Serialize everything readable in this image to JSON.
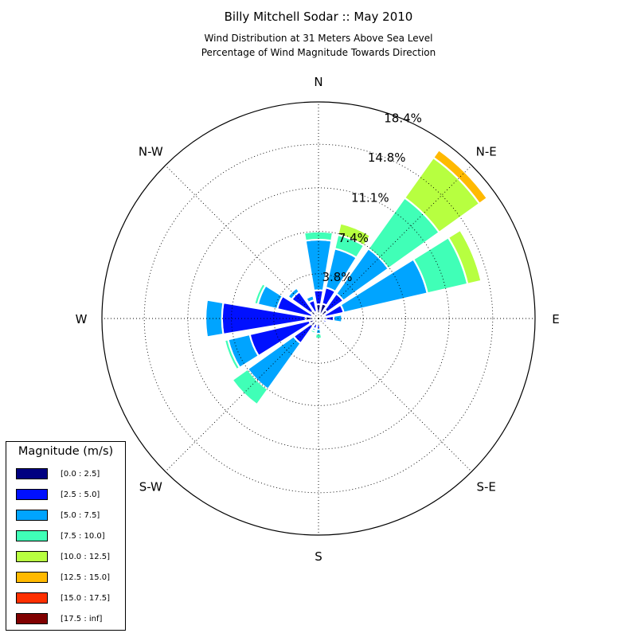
{
  "title": "Billy Mitchell Sodar :: May 2010",
  "subtitle_lines": [
    "Wind Distribution at 31 Meters Above Sea Level",
    "Percentage of Wind Magnitude Towards Direction"
  ],
  "chart_data": {
    "type": "polar-stacked-bar (wind rose)",
    "title": "Billy Mitchell Sodar :: May 2010",
    "radial_unit": "%",
    "radial_ticks": [
      "3.8%",
      "7.4%",
      "11.1%",
      "14.8%",
      "18.4%"
    ],
    "radial_tick_values": [
      3.8,
      7.4,
      11.1,
      14.8,
      18.4
    ],
    "radial_max": 18.4,
    "direction_labels": [
      {
        "label": "N",
        "angle_deg": 0
      },
      {
        "label": "N-E",
        "angle_deg": 45
      },
      {
        "label": "E",
        "angle_deg": 90
      },
      {
        "label": "S-E",
        "angle_deg": 135
      },
      {
        "label": "S",
        "angle_deg": 180
      },
      {
        "label": "S-W",
        "angle_deg": 225
      },
      {
        "label": "W",
        "angle_deg": 270
      },
      {
        "label": "N-W",
        "angle_deg": 315
      }
    ],
    "legend": {
      "title": "Magnitude (m/s)",
      "placement": "bottom-left",
      "bins": [
        {
          "label": "[0.0 : 2.5]",
          "color": "#000080"
        },
        {
          "label": "[2.5 : 5.0]",
          "color": "#0010ff"
        },
        {
          "label": "[5.0 : 7.5]",
          "color": "#00a4ff"
        },
        {
          "label": "[7.5 : 10.0]",
          "color": "#40ffb7"
        },
        {
          "label": "[10.0 : 12.5]",
          "color": "#b7ff40"
        },
        {
          "label": "[12.5 : 15.0]",
          "color": "#ffb900"
        },
        {
          "label": "[15.0 : 17.5]",
          "color": "#ff3000"
        },
        {
          "label": "[17.5 : inf]",
          "color": "#800000"
        }
      ]
    },
    "sectors": [
      {
        "direction_deg": 0,
        "cumulative_pct": [
          1.2,
          2.4,
          6.7,
          7.4,
          7.5,
          7.5,
          7.5,
          7.5
        ]
      },
      {
        "direction_deg": 22.5,
        "cumulative_pct": [
          1.3,
          2.7,
          6.1,
          7.3,
          8.3,
          8.3,
          8.3,
          8.3
        ]
      },
      {
        "direction_deg": 45,
        "cumulative_pct": [
          0.9,
          2.6,
          7.3,
          12.6,
          16.8,
          17.6,
          17.6,
          17.6
        ]
      },
      {
        "direction_deg": 67.5,
        "cumulative_pct": [
          0.6,
          2.2,
          9.5,
          13.0,
          14.2,
          14.3,
          14.3,
          14.3
        ]
      },
      {
        "direction_deg": 90,
        "cumulative_pct": [
          0.6,
          1.3,
          2.0,
          2.0,
          2.0,
          2.0,
          2.0,
          2.0
        ]
      },
      {
        "direction_deg": 112.5,
        "cumulative_pct": [
          0.3,
          0.7,
          0.7,
          0.7,
          0.7,
          0.7,
          0.7,
          0.7
        ]
      },
      {
        "direction_deg": 135,
        "cumulative_pct": [
          0.2,
          0.2,
          0.2,
          0.2,
          0.2,
          0.2,
          0.2,
          0.2
        ]
      },
      {
        "direction_deg": 157.5,
        "cumulative_pct": [
          0.2,
          0.2,
          0.2,
          0.2,
          0.2,
          0.2,
          0.2,
          0.2
        ]
      },
      {
        "direction_deg": 180,
        "cumulative_pct": [
          0.4,
          0.9,
          1.3,
          1.7,
          1.7,
          1.7,
          1.7,
          1.7
        ]
      },
      {
        "direction_deg": 202.5,
        "cumulative_pct": [
          0.5,
          0.9,
          1.1,
          1.3,
          1.3,
          1.3,
          1.3,
          1.3
        ]
      },
      {
        "direction_deg": 225,
        "cumulative_pct": [
          0.8,
          2.6,
          7.4,
          9.0,
          9.0,
          9.0,
          9.0,
          9.0
        ]
      },
      {
        "direction_deg": 247.5,
        "cumulative_pct": [
          0.8,
          6.0,
          7.9,
          8.2,
          8.2,
          8.2,
          8.2,
          8.2
        ]
      },
      {
        "direction_deg": 270,
        "cumulative_pct": [
          1.1,
          8.2,
          9.6,
          9.6,
          9.6,
          9.6,
          9.6,
          9.6
        ]
      },
      {
        "direction_deg": 292.5,
        "cumulative_pct": [
          0.6,
          3.6,
          5.3,
          5.6,
          5.6,
          5.6,
          5.6,
          5.6
        ]
      },
      {
        "direction_deg": 315,
        "cumulative_pct": [
          0.8,
          2.8,
          3.2,
          3.2,
          3.2,
          3.2,
          3.2,
          3.2
        ]
      },
      {
        "direction_deg": 337.5,
        "cumulative_pct": [
          0.6,
          1.6,
          2.0,
          2.0,
          2.0,
          2.0,
          2.0,
          2.0
        ]
      }
    ]
  }
}
